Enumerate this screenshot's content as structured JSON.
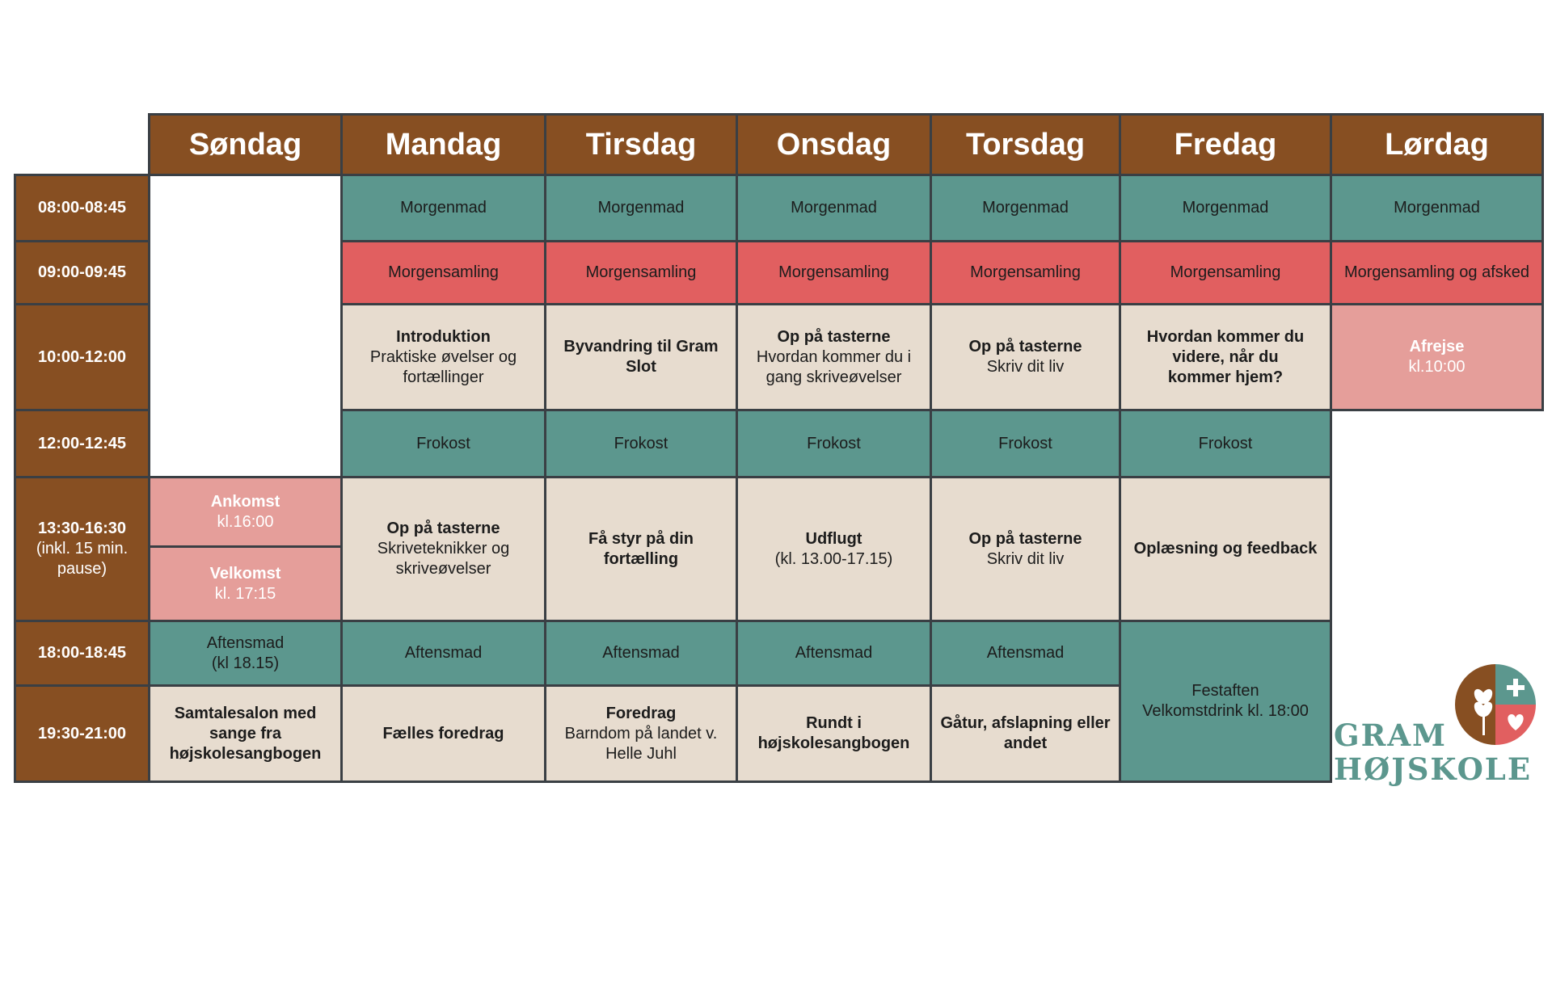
{
  "days": [
    "Søndag",
    "Mandag",
    "Tirsdag",
    "Onsdag",
    "Torsdag",
    "Fredag",
    "Lørdag"
  ],
  "times": {
    "t1": "08:00-08:45",
    "t2": "09:00-09:45",
    "t3": "10:00-12:00",
    "t4": "12:00-12:45",
    "t5": "13:30-16:30",
    "t5_sub": "(inkl. 15 min. pause)",
    "t6": "18:00-18:45",
    "t7": "19:30-21:00"
  },
  "schedule": {
    "morgenmad": "Morgenmad",
    "morgensamling": "Morgensamling",
    "morgensamling_afsked": "Morgensamling og afsked",
    "frokost": "Frokost",
    "aftensmad": "Aftensmad",
    "man_intro_title": "Introduktion",
    "man_intro_sub": "Praktiske øvelser og fortællinger",
    "tir_byvandring": "Byvandring til Gram Slot",
    "ons_taster_title": "Op på tasterne",
    "ons_taster_sub": "Hvordan kommer du i gang skriveøvelser",
    "tor_taster_title": "Op på tasterne",
    "tor_taster_sub": "Skriv dit liv",
    "fre_videre": "Hvordan kommer du videre, når du kommer hjem?",
    "lor_afrejse_title": "Afrejse",
    "lor_afrejse_sub": "kl.10:00",
    "son_ankomst_title": "Ankomst",
    "son_ankomst_sub": "kl.16:00",
    "son_velkomst_title": "Velkomst",
    "son_velkomst_sub": "kl. 17:15",
    "man_pm_title": "Op på tasterne",
    "man_pm_sub": "Skriveteknikker og skriveøvelser",
    "tir_pm": "Få styr på din fortælling",
    "ons_pm_title": "Udflugt",
    "ons_pm_sub": "(kl. 13.00-17.15)",
    "tor_pm_title": "Op på tasterne",
    "tor_pm_sub": "Skriv dit liv",
    "fre_pm": "Oplæsning og feedback",
    "son_aftensmad_sub": "(kl 18.15)",
    "son_eve": "Samtalesalon med sange fra højskolesangbogen",
    "man_eve": "Fælles foredrag",
    "tir_eve_title": "Foredrag",
    "tir_eve_sub": "Barndom på landet v. Helle Juhl",
    "ons_eve": "Rundt i højskolesangbogen",
    "tor_eve": "Gåtur, afslapning eller andet",
    "fre_fest_title": "Festaften",
    "fre_fest_sub": "Velkomstdrink kl. 18:00"
  },
  "logo": {
    "line1": "GRAM",
    "line2": "HØJSKOLE",
    "colors": {
      "brown": "#874f22",
      "teal": "#5c978e",
      "red": "#e15f60"
    },
    "icons": [
      "wheat-icon",
      "plus-icon",
      "heart-icon"
    ]
  }
}
